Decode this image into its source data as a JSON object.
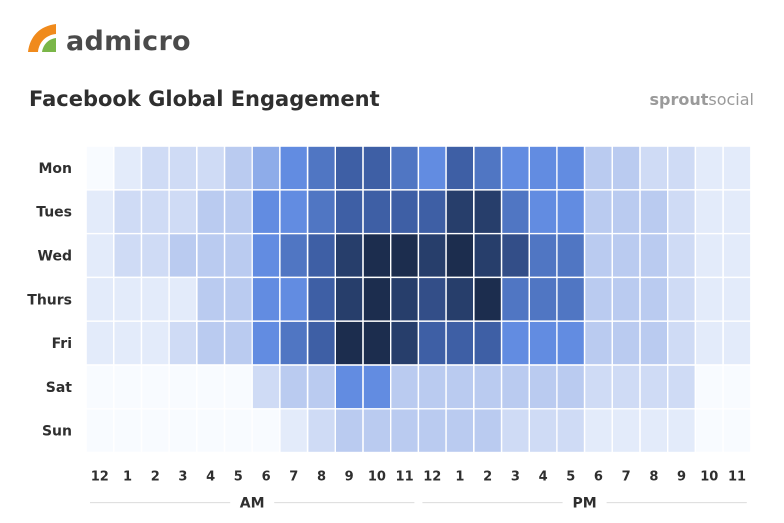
{
  "header": {
    "logo_text": "admicro",
    "title": "Facebook Global Engagement",
    "brand_bold": "sprout",
    "brand_light": "social"
  },
  "colors": {
    "scale_low": "#f8fbff",
    "scale_high": "#1c2d4e",
    "scale_mid": "#5a86e0",
    "logo_orange": "#f08a1c",
    "logo_green": "#7ab648"
  },
  "chart_data": {
    "type": "heatmap",
    "title": "Facebook Global Engagement",
    "rows": [
      "Mon",
      "Tues",
      "Wed",
      "Thurs",
      "Fri",
      "Sat",
      "Sun"
    ],
    "columns": [
      "12",
      "1",
      "2",
      "3",
      "4",
      "5",
      "6",
      "7",
      "8",
      "9",
      "10",
      "11",
      "12",
      "1",
      "2",
      "3",
      "4",
      "5",
      "6",
      "7",
      "8",
      "9",
      "10",
      "11"
    ],
    "column_groups": [
      {
        "label": "AM",
        "start": 0,
        "end": 11
      },
      {
        "label": "PM",
        "start": 12,
        "end": 23
      }
    ],
    "value_scale": "relative engagement 0-10 (darker = higher)",
    "values": [
      [
        0,
        1,
        2,
        2,
        2,
        3,
        4,
        5,
        6,
        7,
        7,
        6,
        5,
        7,
        6,
        5,
        5,
        5,
        3,
        3,
        2,
        2,
        1,
        1
      ],
      [
        1,
        2,
        2,
        2,
        3,
        3,
        5,
        5,
        6,
        7,
        7,
        7,
        7,
        9,
        9,
        6,
        5,
        5,
        3,
        3,
        3,
        2,
        1,
        1
      ],
      [
        1,
        2,
        2,
        3,
        3,
        3,
        5,
        6,
        7,
        9,
        10,
        10,
        9,
        10,
        9,
        8,
        6,
        6,
        3,
        3,
        3,
        2,
        1,
        1
      ],
      [
        1,
        1,
        1,
        1,
        3,
        3,
        5,
        5,
        7,
        9,
        10,
        9,
        8,
        9,
        10,
        6,
        6,
        6,
        3,
        3,
        3,
        2,
        1,
        1
      ],
      [
        1,
        1,
        1,
        2,
        3,
        3,
        5,
        6,
        7,
        10,
        10,
        9,
        7,
        7,
        7,
        5,
        5,
        5,
        3,
        3,
        3,
        2,
        1,
        1
      ],
      [
        0,
        0,
        0,
        0,
        0,
        0,
        2,
        3,
        3,
        5,
        5,
        3,
        3,
        3,
        3,
        3,
        3,
        3,
        2,
        2,
        2,
        2,
        0,
        0
      ],
      [
        0,
        0,
        0,
        0,
        0,
        0,
        0,
        1,
        2,
        3,
        3,
        3,
        3,
        3,
        3,
        2,
        2,
        2,
        1,
        1,
        1,
        1,
        0,
        0
      ]
    ],
    "legend": "none",
    "grid": true
  }
}
